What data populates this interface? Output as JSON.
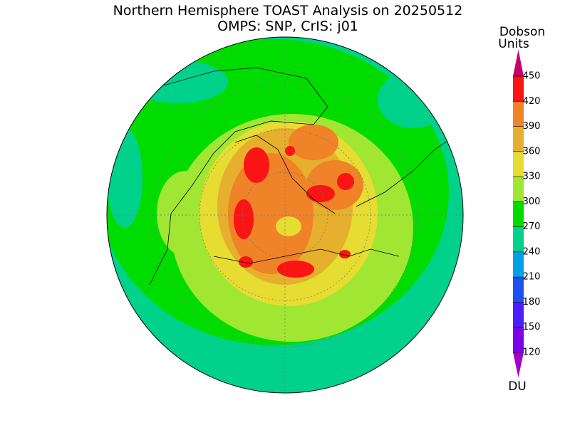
{
  "title": "Northern Hemisphere TOAST Analysis on 20250512",
  "subtitle": "OMPS: SNP, CrIS: j01",
  "colorbar": {
    "title_lines": [
      "Dobson",
      "Units"
    ],
    "unit": "DU",
    "ticks": [
      120,
      150,
      180,
      210,
      240,
      270,
      300,
      330,
      360,
      390,
      420,
      450
    ],
    "under_color": "#a000c8",
    "colors": [
      "#7d00e6",
      "#4b1efa",
      "#1e50f0",
      "#00a0e6",
      "#00d28c",
      "#00dc00",
      "#a0e632",
      "#e6dc32",
      "#e6af2d",
      "#f08228",
      "#fa1414"
    ],
    "over_color": "#c8006e"
  }
}
